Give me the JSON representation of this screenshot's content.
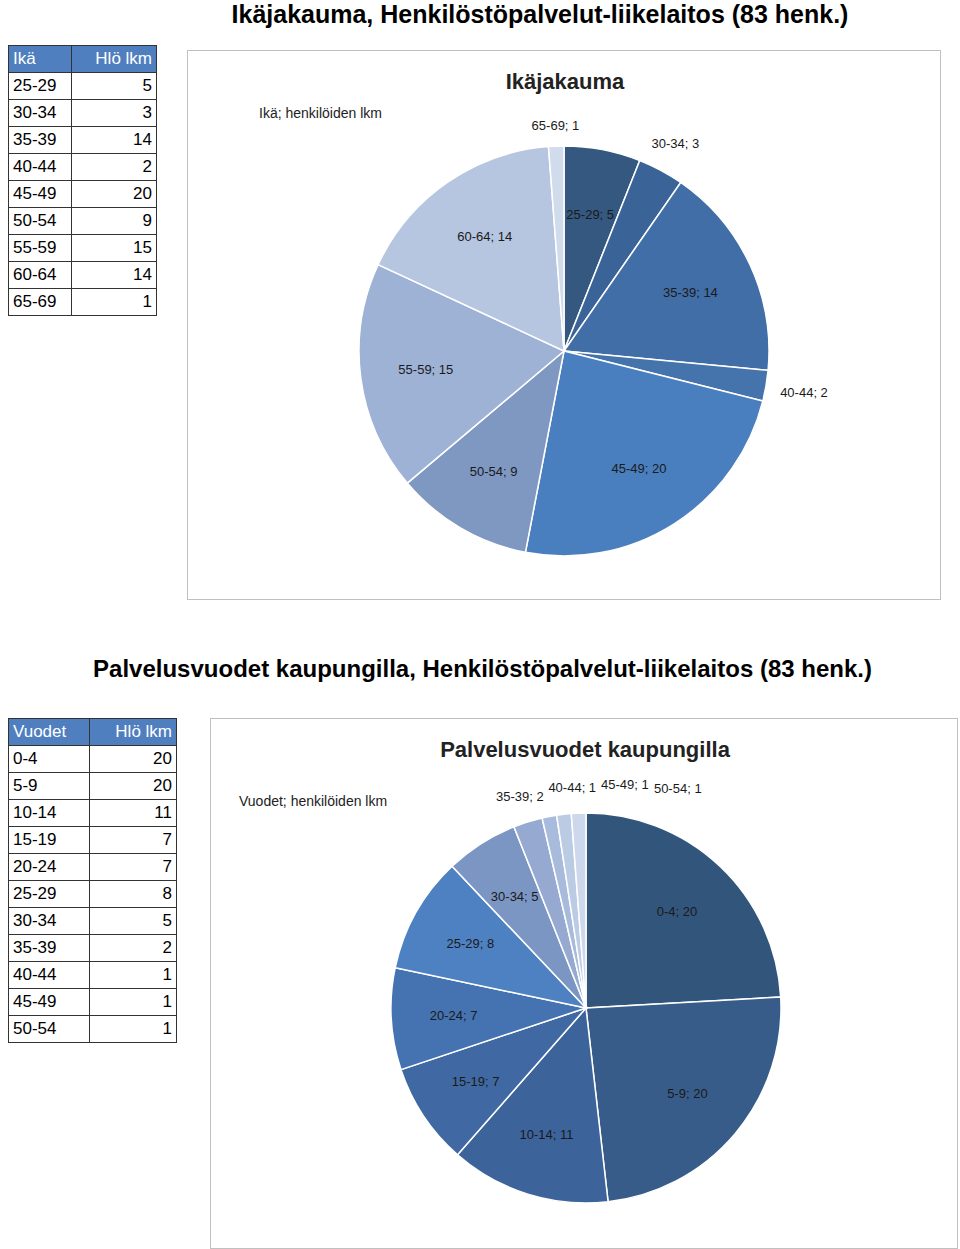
{
  "chart_data": [
    {
      "type": "pie",
      "title": "Ikäjakauma",
      "subtitle": "Ikä; henkilöiden lkm",
      "categories": [
        "25-29",
        "30-34",
        "35-39",
        "40-44",
        "45-49",
        "50-54",
        "55-59",
        "60-64",
        "65-69"
      ],
      "values": [
        5,
        3,
        14,
        2,
        20,
        9,
        15,
        14,
        1
      ],
      "value_labels": [
        "25-29; 5",
        "30-34; 3",
        "35-39; 14",
        "40-44; 2",
        "45-49; 20",
        "50-54; 9",
        "55-59; 15",
        "60-64; 14",
        "65-69; 1"
      ],
      "colors": [
        "#34587f",
        "#3a6397",
        "#416ea6",
        "#4574ad",
        "#4a7fbf",
        "#7e98c2",
        "#9db2d4",
        "#b6c5e0",
        "#d0dbec"
      ],
      "data_labels": true
    },
    {
      "type": "pie",
      "title": "Palvelusvuodet kaupungilla",
      "subtitle": "Vuodet; henkilöiden lkm",
      "categories": [
        "0-4",
        "5-9",
        "10-14",
        "15-19",
        "20-24",
        "25-29",
        "30-34",
        "35-39",
        "40-44",
        "45-49",
        "50-54"
      ],
      "values": [
        20,
        20,
        11,
        7,
        7,
        8,
        5,
        2,
        1,
        1,
        1
      ],
      "value_labels": [
        "0-4; 20",
        "5-9; 20",
        "10-14; 11",
        "15-19; 7",
        "20-24; 7",
        "25-29; 8",
        "30-34; 5",
        "35-39; 2",
        "40-44; 1",
        "45-49; 1",
        "50-54; 1"
      ],
      "colors": [
        "#32557c",
        "#385c8a",
        "#3c649a",
        "#4069a3",
        "#4573b1",
        "#4e81c2",
        "#7b96c3",
        "#96aad1",
        "#a9bbdc",
        "#bccbe4",
        "#cdd8ec"
      ],
      "data_labels": true
    }
  ],
  "page": {
    "sections": [
      {
        "heading": "Ikäjakauma, Henkilöstöpalvelut-liikelaitos (83 henk.)",
        "table_columns": [
          "Ikä",
          "Hlö lkm"
        ]
      },
      {
        "heading": "Palvelusvuodet kaupungilla, Henkilöstöpalvelut-liikelaitos (83 henk.)",
        "table_columns": [
          "Vuodet",
          "Hlö lkm"
        ]
      }
    ]
  }
}
